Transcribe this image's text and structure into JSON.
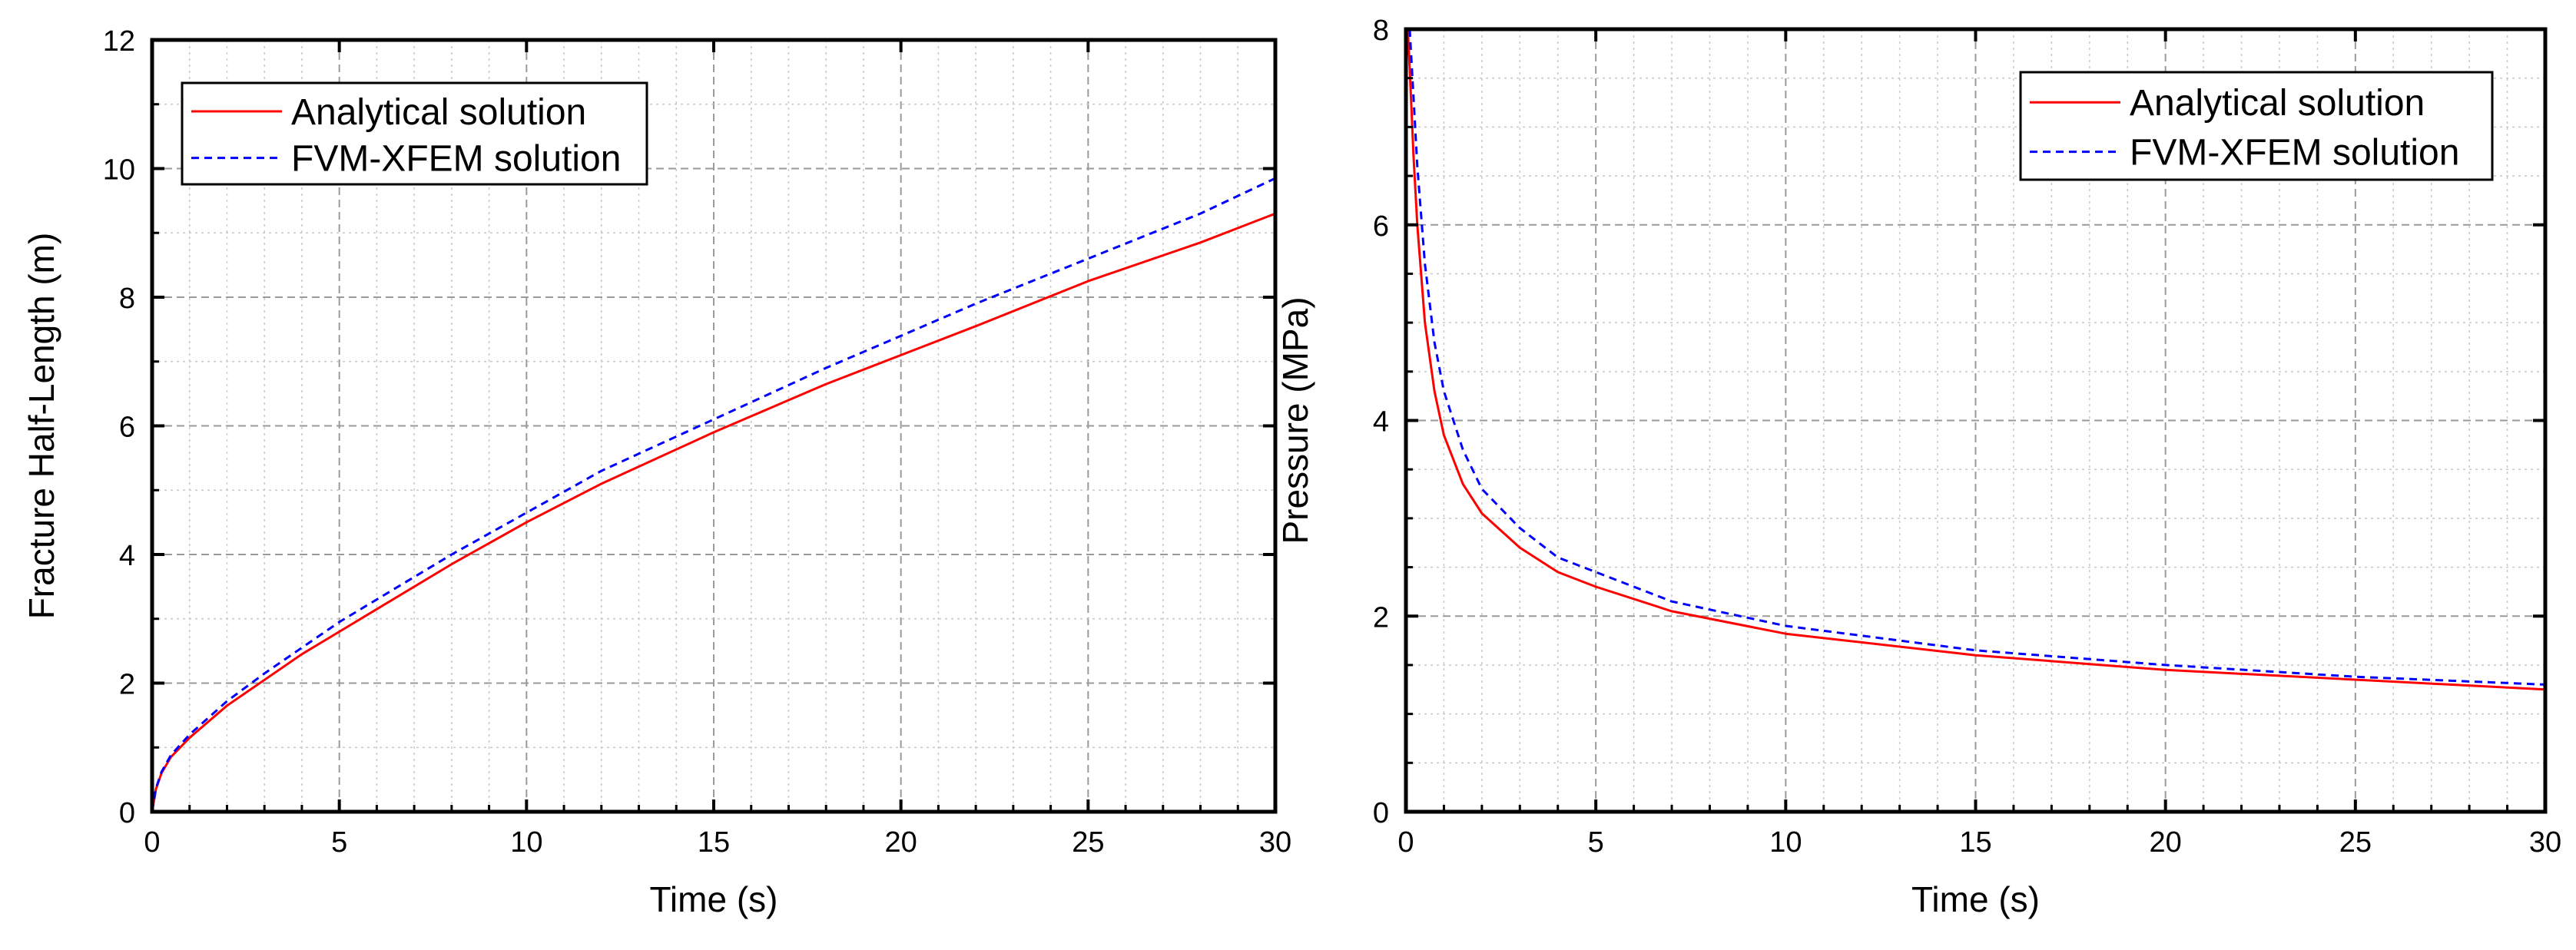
{
  "chart_data": [
    {
      "type": "line",
      "title": "",
      "xlabel": "Time (s)",
      "ylabel": "Fracture Half-Length (m)",
      "xlim": [
        0,
        30
      ],
      "ylim": [
        0,
        12
      ],
      "xticks": [
        "0",
        "5",
        "10",
        "15",
        "20",
        "25",
        "30"
      ],
      "yticks": [
        "0",
        "2",
        "4",
        "6",
        "8",
        "10",
        "12"
      ],
      "grid": true,
      "legend_position": "top-left",
      "series": [
        {
          "name": "Analytical solution",
          "color": "#ff0000",
          "style": "solid",
          "x": [
            0,
            0.1,
            0.25,
            0.5,
            1,
            2,
            3,
            4,
            5,
            6,
            8,
            10,
            12,
            15,
            18,
            20,
            22,
            25,
            28,
            30
          ],
          "y": [
            0,
            0.35,
            0.6,
            0.85,
            1.15,
            1.65,
            2.05,
            2.45,
            2.8,
            3.15,
            3.85,
            4.5,
            5.1,
            5.9,
            6.65,
            7.1,
            7.55,
            8.25,
            8.85,
            9.3
          ]
        },
        {
          "name": "FVM-XFEM solution",
          "color": "#0000ff",
          "style": "dashed",
          "x": [
            0,
            0.1,
            0.25,
            0.5,
            1,
            2,
            3,
            4,
            5,
            6,
            8,
            10,
            12,
            15,
            18,
            20,
            22,
            25,
            28,
            30
          ],
          "y": [
            0,
            0.36,
            0.62,
            0.88,
            1.2,
            1.72,
            2.15,
            2.55,
            2.95,
            3.3,
            4.0,
            4.65,
            5.3,
            6.1,
            6.9,
            7.4,
            7.9,
            8.6,
            9.3,
            9.85
          ]
        }
      ]
    },
    {
      "type": "line",
      "title": "",
      "xlabel": "Time (s)",
      "ylabel": "Pressure (MPa)",
      "xlim": [
        0,
        30
      ],
      "ylim": [
        0,
        8
      ],
      "xticks": [
        "0",
        "5",
        "10",
        "15",
        "20",
        "25",
        "30"
      ],
      "yticks": [
        "0",
        "2",
        "4",
        "6",
        "8"
      ],
      "grid": true,
      "legend_position": "top-right",
      "series": [
        {
          "name": "Analytical solution",
          "color": "#ff0000",
          "style": "solid",
          "x": [
            0.05,
            0.1,
            0.2,
            0.3,
            0.5,
            0.75,
            1,
            1.5,
            2,
            3,
            4,
            5,
            7,
            10,
            15,
            20,
            25,
            30
          ],
          "y": [
            8.0,
            7.6,
            6.7,
            6.0,
            5.0,
            4.3,
            3.85,
            3.35,
            3.05,
            2.7,
            2.45,
            2.3,
            2.05,
            1.82,
            1.6,
            1.45,
            1.35,
            1.25
          ]
        },
        {
          "name": "FVM-XFEM solution",
          "color": "#0000ff",
          "style": "dashed",
          "x": [
            0.1,
            0.2,
            0.3,
            0.5,
            0.75,
            1,
            1.5,
            2,
            3,
            4,
            5,
            7,
            10,
            15,
            20,
            25,
            30
          ],
          "y": [
            8.0,
            7.3,
            6.6,
            5.6,
            4.8,
            4.3,
            3.7,
            3.3,
            2.9,
            2.6,
            2.45,
            2.15,
            1.9,
            1.65,
            1.5,
            1.38,
            1.3
          ]
        }
      ]
    }
  ]
}
